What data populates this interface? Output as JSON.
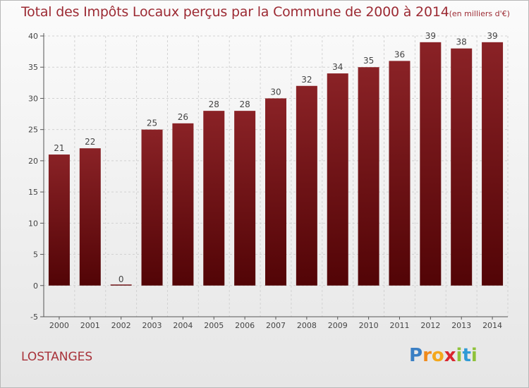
{
  "chart_data": {
    "type": "bar",
    "title": "Total des Impôts Locaux perçus par la Commune de 2000 à 2014",
    "unit": "(en milliers d'€)",
    "categories": [
      "2000",
      "2001",
      "2002",
      "2003",
      "2004",
      "2005",
      "2006",
      "2007",
      "2008",
      "2009",
      "2010",
      "2011",
      "2012",
      "2013",
      "2014"
    ],
    "values": [
      21,
      22,
      0,
      25,
      26,
      28,
      28,
      30,
      32,
      34,
      35,
      36,
      39,
      38,
      39
    ],
    "ylim": [
      -5,
      40
    ],
    "yticks": [
      -5,
      0,
      5,
      10,
      15,
      20,
      25,
      30,
      35,
      40
    ],
    "grid": "dashed vertical",
    "bar_color": "#6e1317"
  },
  "commune": "LOSTANGES",
  "logo": {
    "letters": [
      "P",
      "r",
      "o",
      "x",
      "i",
      "t",
      "i"
    ],
    "colors": [
      "#3a7fc4",
      "#f08a1c",
      "#f4a81c",
      "#d9262f",
      "#8fc23a",
      "#2f9ad6",
      "#8fc23a"
    ]
  }
}
